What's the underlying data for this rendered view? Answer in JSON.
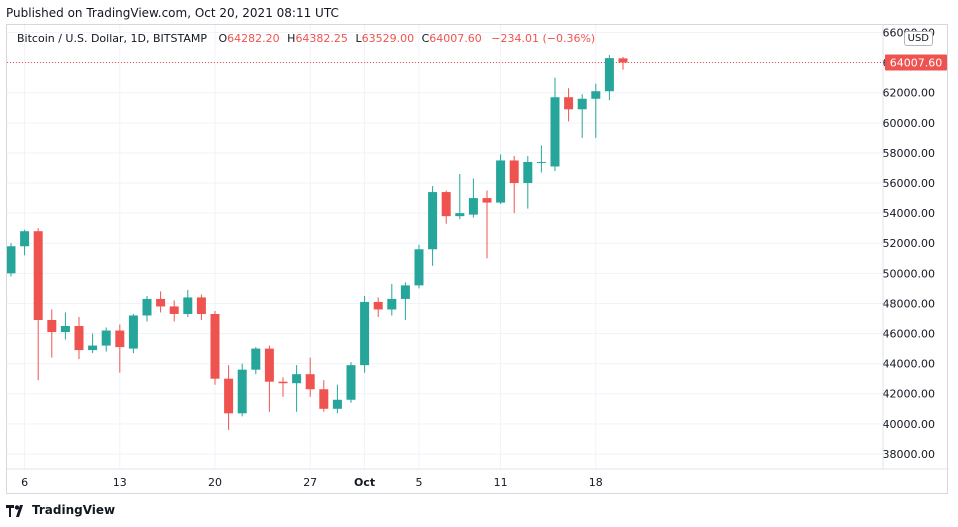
{
  "header": {
    "published": "Published on TradingView.com, Oct 20, 2021 08:11 UTC"
  },
  "legend": {
    "symbol": "Bitcoin / U.S. Dollar, 1D, BITSTAMP",
    "o_label": "O",
    "o_value": "64282.20",
    "h_label": "H",
    "h_value": "64382.25",
    "l_label": "L",
    "l_value": "63529.00",
    "c_label": "C",
    "c_value": "64007.60",
    "change": "−234.01 (−0.36%)"
  },
  "currency_button": "USD",
  "footer": {
    "brand": "TradingView",
    "logo_icon": "tradingview-logo-icon"
  },
  "colors": {
    "up": "#26a69a",
    "down": "#ef5350",
    "grid": "#f0f3fa",
    "axis_text": "#131722",
    "price_line": "#ef5350"
  },
  "chart_data": {
    "type": "candlestick",
    "y_axis": {
      "min": 37000,
      "max": 66500,
      "position": "right",
      "ticks": [
        "66000.00",
        "64000.00",
        "62000.00",
        "60000.00",
        "58000.00",
        "56000.00",
        "54000.00",
        "52000.00",
        "50000.00",
        "48000.00",
        "46000.00",
        "44000.00",
        "42000.00",
        "40000.00",
        "38000.00"
      ]
    },
    "x_axis": {
      "labels": [
        {
          "index": 1,
          "text": "6"
        },
        {
          "index": 8,
          "text": "13"
        },
        {
          "index": 15,
          "text": "20"
        },
        {
          "index": 22,
          "text": "27"
        },
        {
          "index": 26,
          "text": "Oct"
        },
        {
          "index": 30,
          "text": "5"
        },
        {
          "index": 36,
          "text": "11"
        },
        {
          "index": 43,
          "text": "18"
        }
      ]
    },
    "last_price": {
      "value": 64007.6,
      "label": "64007.60"
    },
    "grid": true,
    "candles": [
      {
        "o": 50000,
        "h": 52000,
        "l": 49800,
        "c": 51800
      },
      {
        "o": 51800,
        "h": 52900,
        "l": 51200,
        "c": 52800
      },
      {
        "o": 52800,
        "h": 53000,
        "l": 42900,
        "c": 46900
      },
      {
        "o": 46900,
        "h": 47600,
        "l": 44400,
        "c": 46100
      },
      {
        "o": 46100,
        "h": 47400,
        "l": 45600,
        "c": 46500
      },
      {
        "o": 46500,
        "h": 47100,
        "l": 44300,
        "c": 44900
      },
      {
        "o": 44900,
        "h": 46000,
        "l": 44700,
        "c": 45200
      },
      {
        "o": 45200,
        "h": 46400,
        "l": 44800,
        "c": 46200
      },
      {
        "o": 46200,
        "h": 46600,
        "l": 43400,
        "c": 45100
      },
      {
        "o": 45000,
        "h": 47300,
        "l": 44700,
        "c": 47200
      },
      {
        "o": 47200,
        "h": 48500,
        "l": 46800,
        "c": 48300
      },
      {
        "o": 48300,
        "h": 48800,
        "l": 47400,
        "c": 47800
      },
      {
        "o": 47800,
        "h": 48200,
        "l": 46800,
        "c": 47300
      },
      {
        "o": 47300,
        "h": 48900,
        "l": 47100,
        "c": 48400
      },
      {
        "o": 48400,
        "h": 48600,
        "l": 46900,
        "c": 47300
      },
      {
        "o": 47300,
        "h": 47500,
        "l": 42600,
        "c": 43000
      },
      {
        "o": 43000,
        "h": 43900,
        "l": 39600,
        "c": 40700
      },
      {
        "o": 40700,
        "h": 44000,
        "l": 40500,
        "c": 43600
      },
      {
        "o": 43600,
        "h": 45100,
        "l": 43300,
        "c": 45000
      },
      {
        "o": 45000,
        "h": 45200,
        "l": 40800,
        "c": 42800
      },
      {
        "o": 42800,
        "h": 43100,
        "l": 41800,
        "c": 42700
      },
      {
        "o": 42700,
        "h": 43900,
        "l": 40800,
        "c": 43300
      },
      {
        "o": 43300,
        "h": 44400,
        "l": 41800,
        "c": 42300
      },
      {
        "o": 42300,
        "h": 42900,
        "l": 40800,
        "c": 41000
      },
      {
        "o": 41000,
        "h": 42600,
        "l": 40700,
        "c": 41600
      },
      {
        "o": 41600,
        "h": 44100,
        "l": 41400,
        "c": 43900
      },
      {
        "o": 43900,
        "h": 48500,
        "l": 43400,
        "c": 48100
      },
      {
        "o": 48100,
        "h": 48400,
        "l": 47100,
        "c": 47600
      },
      {
        "o": 47600,
        "h": 49300,
        "l": 47200,
        "c": 48300
      },
      {
        "o": 48300,
        "h": 49400,
        "l": 46900,
        "c": 49200
      },
      {
        "o": 49200,
        "h": 51900,
        "l": 49000,
        "c": 51600
      },
      {
        "o": 51600,
        "h": 55800,
        "l": 50500,
        "c": 55400
      },
      {
        "o": 55400,
        "h": 55500,
        "l": 53300,
        "c": 53800
      },
      {
        "o": 53800,
        "h": 56600,
        "l": 53600,
        "c": 54000
      },
      {
        "o": 53900,
        "h": 56300,
        "l": 53700,
        "c": 55000
      },
      {
        "o": 55000,
        "h": 55500,
        "l": 51000,
        "c": 54700
      },
      {
        "o": 54700,
        "h": 57900,
        "l": 54600,
        "c": 57500
      },
      {
        "o": 57500,
        "h": 57800,
        "l": 54000,
        "c": 56000
      },
      {
        "o": 56000,
        "h": 57800,
        "l": 54300,
        "c": 57400
      },
      {
        "o": 57400,
        "h": 58500,
        "l": 56700,
        "c": 57400
      },
      {
        "o": 57100,
        "h": 63000,
        "l": 56800,
        "c": 61700
      },
      {
        "o": 61700,
        "h": 62300,
        "l": 60100,
        "c": 60900
      },
      {
        "o": 60900,
        "h": 61900,
        "l": 59000,
        "c": 61600
      },
      {
        "o": 61600,
        "h": 62600,
        "l": 59000,
        "c": 62100
      },
      {
        "o": 62100,
        "h": 64500,
        "l": 61500,
        "c": 64300
      },
      {
        "o": 64282.2,
        "h": 64382.25,
        "l": 63529,
        "c": 64007.6
      }
    ]
  }
}
